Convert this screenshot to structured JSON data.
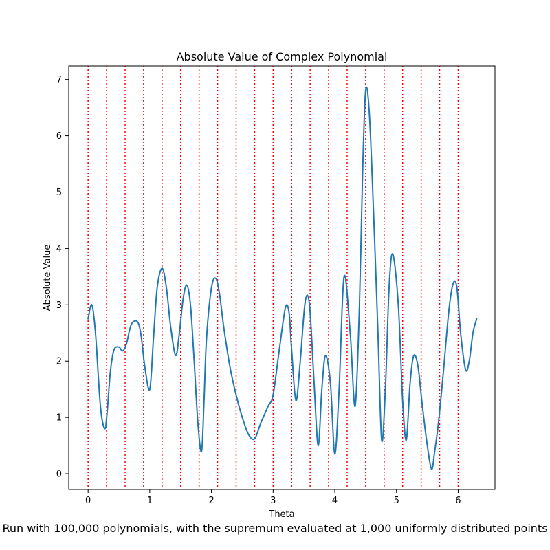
{
  "chart_data": {
    "type": "line",
    "title": "Absolute Value of Complex Polynomial",
    "xlabel": "Theta",
    "ylabel": "Absolute Value",
    "xlim": [
      -0.314,
      6.597
    ],
    "ylim": [
      -0.28,
      7.24
    ],
    "xticks": [
      0,
      1,
      2,
      3,
      4,
      5,
      6
    ],
    "yticks": [
      0,
      1,
      2,
      3,
      4,
      5,
      6,
      7
    ],
    "grid": false,
    "legend": "none",
    "reference_lines": {
      "orientation": "vertical",
      "style": "dotted",
      "color": "#ff0000",
      "x": [
        0,
        0.3,
        0.6,
        0.9,
        1.2,
        1.5,
        1.8,
        2.1,
        2.4,
        2.7,
        3.0,
        3.3,
        3.6,
        3.9,
        4.2,
        4.5,
        4.8,
        5.1,
        5.4,
        5.7,
        6.0
      ]
    },
    "series": [
      {
        "color": "#1f77b4",
        "x": [
          0.0,
          0.06,
          0.12,
          0.2,
          0.27,
          0.31,
          0.36,
          0.42,
          0.5,
          0.56,
          0.62,
          0.7,
          0.8,
          0.86,
          0.92,
          1.0,
          1.06,
          1.12,
          1.2,
          1.27,
          1.34,
          1.42,
          1.48,
          1.54,
          1.6,
          1.66,
          1.72,
          1.78,
          1.84,
          1.88,
          1.92,
          2.0,
          2.07,
          2.13,
          2.2,
          2.3,
          2.4,
          2.5,
          2.6,
          2.7,
          2.8,
          2.92,
          3.0,
          3.1,
          3.2,
          3.26,
          3.3,
          3.37,
          3.44,
          3.52,
          3.59,
          3.66,
          3.73,
          3.79,
          3.85,
          3.93,
          4.0,
          4.07,
          4.15,
          4.25,
          4.33,
          4.4,
          4.45,
          4.5,
          4.56,
          4.63,
          4.7,
          4.76,
          4.82,
          4.88,
          4.94,
          5.03,
          5.1,
          5.16,
          5.22,
          5.28,
          5.35,
          5.42,
          5.5,
          5.57,
          5.62,
          5.68,
          5.76,
          5.85,
          5.92,
          5.98,
          6.04,
          6.12,
          6.18,
          6.24,
          6.3
        ],
        "values": [
          2.75,
          3.0,
          2.5,
          1.2,
          0.8,
          1.1,
          1.8,
          2.2,
          2.25,
          2.18,
          2.3,
          2.65,
          2.7,
          2.45,
          1.9,
          1.5,
          2.4,
          3.3,
          3.65,
          3.3,
          2.6,
          2.1,
          2.5,
          3.1,
          3.35,
          3.0,
          2.0,
          0.9,
          0.4,
          1.3,
          2.4,
          3.3,
          3.47,
          3.2,
          2.6,
          1.9,
          1.4,
          1.0,
          0.7,
          0.62,
          0.9,
          1.2,
          1.4,
          2.2,
          2.95,
          2.85,
          2.2,
          1.3,
          2.0,
          3.05,
          3.0,
          1.7,
          0.5,
          1.5,
          2.1,
          1.6,
          0.35,
          1.5,
          3.5,
          2.5,
          1.2,
          3.0,
          5.3,
          6.8,
          6.4,
          4.6,
          2.5,
          0.6,
          1.5,
          3.3,
          3.9,
          3.0,
          1.3,
          0.6,
          1.6,
          2.1,
          1.9,
          1.2,
          0.5,
          0.08,
          0.4,
          0.9,
          1.8,
          2.9,
          3.38,
          3.3,
          2.5,
          1.85,
          2.0,
          2.5,
          2.75
        ]
      }
    ]
  },
  "caption": "Run with 100,000 polynomials, with the supremum evaluated at 1,000 uniformly distributed points"
}
